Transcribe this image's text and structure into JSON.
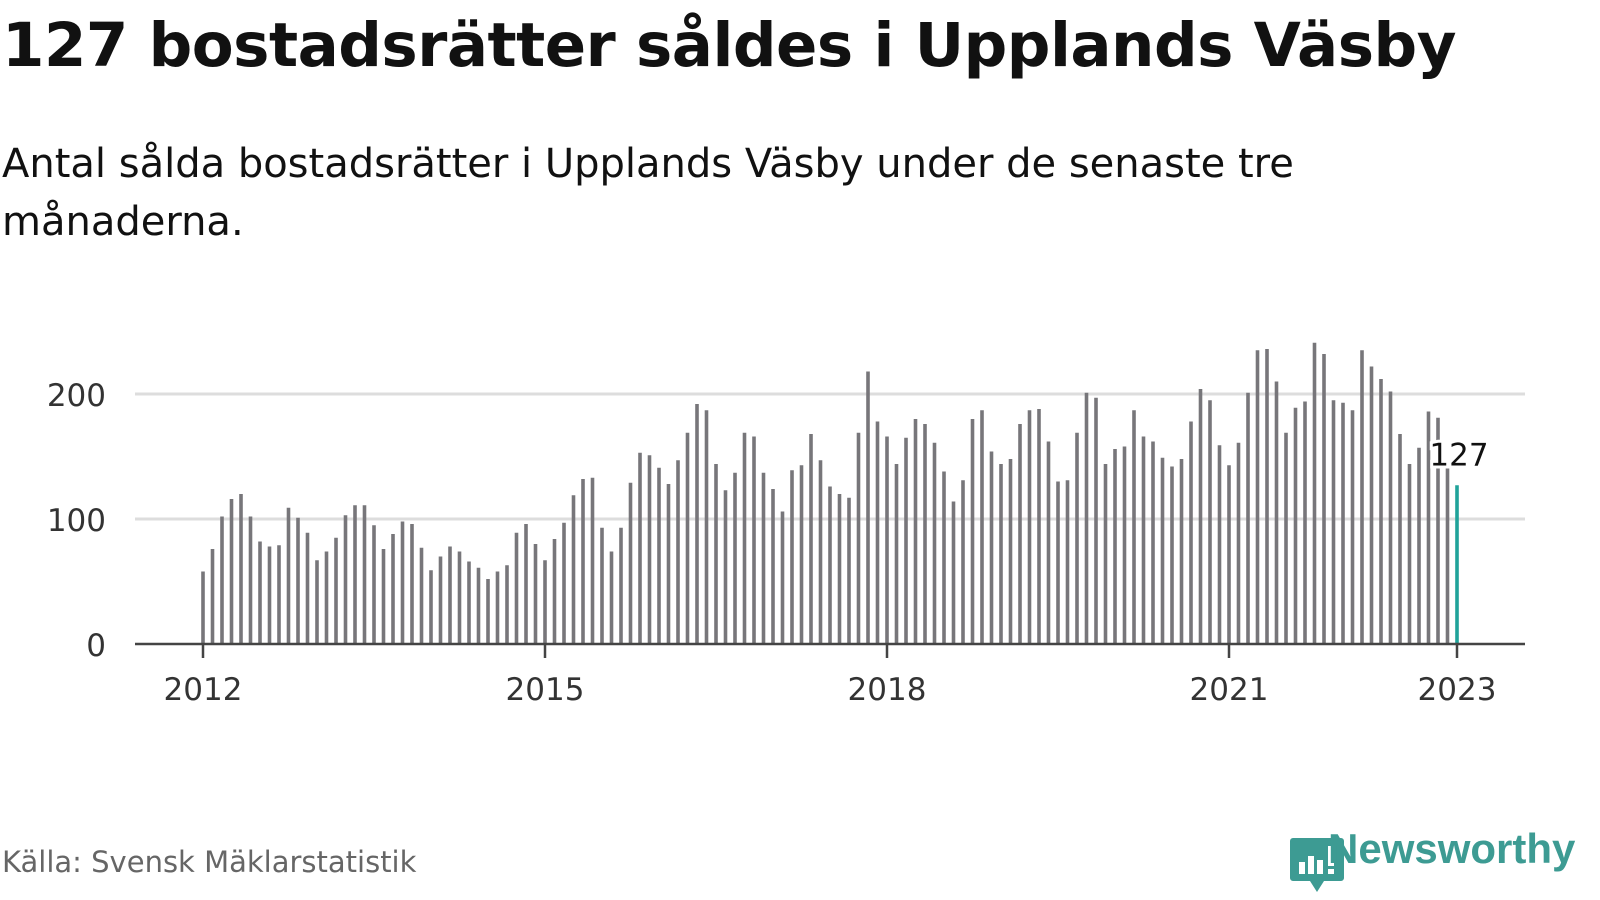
{
  "header": {
    "title": "127 bostadsrätter såldes i Upplands Väsby",
    "subtitle": "Antal sålda bostadsrätter i Upplands Väsby under de senaste tre månaderna."
  },
  "footer": {
    "source": "Källa: Svensk Mäklarstatistik",
    "brand": "Newsworthy"
  },
  "colors": {
    "bar": "#77767a",
    "highlight": "#20a39a",
    "grid": "#dddddd",
    "axis": "#444444",
    "brand": "#3d9b93"
  },
  "chart_data": {
    "type": "bar",
    "x_start": "2012-01",
    "x_end": "2023-01",
    "xticks": [
      "2012",
      "2015",
      "2018",
      "2021",
      "2023"
    ],
    "yticks": [
      0,
      100,
      200
    ],
    "ylim": [
      0,
      250
    ],
    "grid": true,
    "values": [
      58,
      76,
      102,
      116,
      120,
      102,
      82,
      78,
      79,
      109,
      101,
      89,
      67,
      74,
      85,
      103,
      111,
      111,
      95,
      76,
      88,
      98,
      96,
      77,
      59,
      70,
      78,
      74,
      66,
      61,
      52,
      58,
      63,
      89,
      96,
      80,
      67,
      84,
      97,
      119,
      132,
      133,
      93,
      74,
      93,
      129,
      153,
      151,
      141,
      128,
      147,
      169,
      192,
      187,
      144,
      123,
      137,
      169,
      166,
      137,
      124,
      106,
      139,
      143,
      168,
      147,
      126,
      120,
      117,
      169,
      218,
      178,
      166,
      144,
      165,
      180,
      176,
      161,
      138,
      114,
      131,
      180,
      187,
      154,
      144,
      148,
      176,
      187,
      188,
      162,
      130,
      131,
      169,
      201,
      197,
      144,
      156,
      158,
      187,
      166,
      162,
      149,
      142,
      148,
      178,
      204,
      195,
      159,
      143,
      161,
      201,
      235,
      236,
      210,
      169,
      189,
      194,
      241,
      232,
      195,
      193,
      187,
      235,
      222,
      212,
      202,
      168,
      144,
      157,
      186,
      181,
      142,
      127
    ],
    "highlight_label": "127"
  }
}
